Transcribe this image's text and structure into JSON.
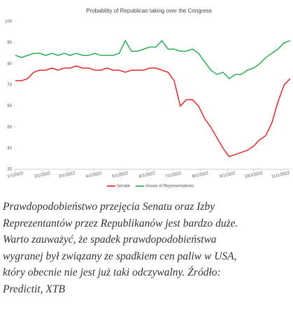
{
  "chart_data": {
    "type": "line",
    "title": "Probability of Republican taking over the Congress",
    "x": [
      "2022-01-01",
      "2022-01-08",
      "2022-01-15",
      "2022-01-22",
      "2022-01-29",
      "2022-02-05",
      "2022-02-12",
      "2022-02-19",
      "2022-02-26",
      "2022-03-05",
      "2022-03-12",
      "2022-03-19",
      "2022-03-26",
      "2022-04-02",
      "2022-04-09",
      "2022-04-16",
      "2022-04-23",
      "2022-04-30",
      "2022-05-07",
      "2022-05-14",
      "2022-05-21",
      "2022-05-28",
      "2022-06-04",
      "2022-06-11",
      "2022-06-18",
      "2022-06-25",
      "2022-07-02",
      "2022-07-09",
      "2022-07-16",
      "2022-07-23",
      "2022-07-30",
      "2022-08-06",
      "2022-08-13",
      "2022-08-20",
      "2022-08-27",
      "2022-09-03",
      "2022-09-10",
      "2022-09-17",
      "2022-09-24",
      "2022-10-01",
      "2022-10-08",
      "2022-10-15",
      "2022-10-22",
      "2022-10-29",
      "2022-11-05",
      "2022-11-12"
    ],
    "series": [
      {
        "name": "Senate",
        "color": "#e31a1c",
        "values": [
          72,
          72,
          73,
          76,
          77,
          77,
          78,
          77,
          78,
          78,
          79,
          78,
          78,
          77,
          77,
          78,
          77,
          77,
          76,
          77,
          77,
          77,
          78,
          78,
          77,
          76,
          72,
          60,
          63,
          63,
          60,
          54,
          50,
          45,
          40,
          36,
          37,
          38,
          39,
          41,
          44,
          46,
          52,
          62,
          70,
          73
        ]
      },
      {
        "name": "House of Representatives",
        "color": "#1ea84a",
        "values": [
          84,
          83,
          84,
          85,
          85,
          84,
          85,
          84,
          85,
          84,
          85,
          84,
          84,
          85,
          84,
          84,
          84,
          85,
          91,
          86,
          86,
          87,
          88,
          88,
          91,
          87,
          87,
          86,
          86,
          87,
          85,
          81,
          77,
          75,
          76,
          73,
          75,
          75,
          77,
          78,
          80,
          83,
          85,
          87,
          90,
          91
        ]
      }
    ],
    "xlim": [
      "2022-01-01",
      "2022-11-12"
    ],
    "xticks": [
      {
        "value": "2022-01-01",
        "label": "1/1/2022"
      },
      {
        "value": "2022-02-01",
        "label": "2/1/2022"
      },
      {
        "value": "2022-03-01",
        "label": "3/1/2022"
      },
      {
        "value": "2022-04-01",
        "label": "4/1/2022"
      },
      {
        "value": "2022-05-01",
        "label": "5/1/2022"
      },
      {
        "value": "2022-06-01",
        "label": "6/1/2022"
      },
      {
        "value": "2022-07-01",
        "label": "7/1/2022"
      },
      {
        "value": "2022-08-01",
        "label": "8/1/2022"
      },
      {
        "value": "2022-09-01",
        "label": "9/1/2022"
      },
      {
        "value": "2022-10-01",
        "label": "10/1/2022"
      },
      {
        "value": "2022-11-01",
        "label": "11/1/2022"
      }
    ],
    "ylim": [
      30,
      100
    ],
    "yticks": [
      30,
      40,
      50,
      60,
      70,
      80,
      90,
      100
    ],
    "legend": "bottom"
  },
  "caption": [
    "Prawdopodobieństwo przejęcia Senatu oraz Izby",
    "Reprezentantów przez Republikanów jest bardzo duże.",
    "Warto zauważyć, że spadek prawdopodobieństwa",
    "wygranej był związany ze spadkiem cen paliw w USA,",
    "który obecnie nie jest już taki odczywalny. Źródło:",
    "Predictit, XTB"
  ]
}
